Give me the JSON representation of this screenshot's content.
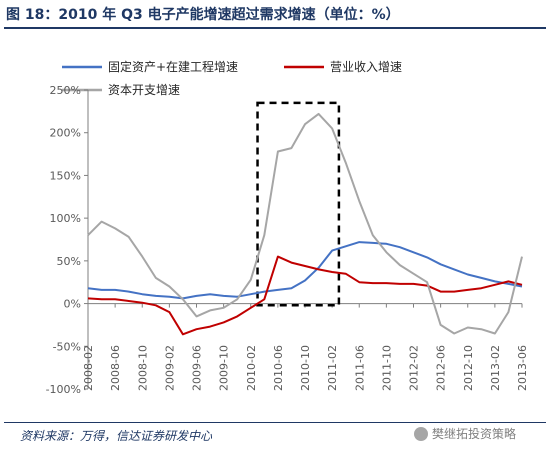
{
  "header": {
    "title": "图 18：2010 年 Q3 电子产能增速超过需求增速（单位：%）"
  },
  "footer": {
    "source": "资料来源：万得，信达证券研发中心",
    "watermark": "樊继拓投资策略"
  },
  "chart_data": {
    "type": "line",
    "title": "",
    "xlabel": "",
    "ylabel": "",
    "ylim": [
      -100,
      250
    ],
    "yticks": [
      -100,
      -50,
      0,
      50,
      100,
      150,
      200,
      250
    ],
    "ytick_labels": [
      "-100%",
      "-50%",
      "0%",
      "50%",
      "100%",
      "150%",
      "200%",
      "250%"
    ],
    "xtick_labels": [
      "2008-02",
      "2008-06",
      "2008-10",
      "2009-02",
      "2009-06",
      "2009-10",
      "2010-02",
      "2010-06",
      "2010-10",
      "2011-02",
      "2011-06",
      "2011-10",
      "2012-02",
      "2012-06",
      "2012-10",
      "2013-02",
      "2013-06"
    ],
    "x": [
      "2008-02",
      "2008-04",
      "2008-06",
      "2008-08",
      "2008-10",
      "2008-12",
      "2009-02",
      "2009-04",
      "2009-06",
      "2009-08",
      "2009-10",
      "2009-12",
      "2010-02",
      "2010-04",
      "2010-06",
      "2010-08",
      "2010-10",
      "2010-12",
      "2011-02",
      "2011-04",
      "2011-06",
      "2011-08",
      "2011-10",
      "2011-12",
      "2012-02",
      "2012-04",
      "2012-06",
      "2012-08",
      "2012-10",
      "2012-12",
      "2013-02",
      "2013-04",
      "2013-06"
    ],
    "series": [
      {
        "name": "固定资产+在建工程增速",
        "color": "#4472c4",
        "values": [
          18,
          16,
          16,
          14,
          11,
          9,
          8,
          6,
          9,
          11,
          9,
          8,
          11,
          14,
          16,
          18,
          27,
          42,
          62,
          67,
          72,
          71,
          70,
          66,
          60,
          54,
          46,
          40,
          34,
          30,
          26,
          23,
          20
        ]
      },
      {
        "name": "营业收入增速",
        "color": "#c00000",
        "values": [
          6,
          5,
          5,
          3,
          1,
          -2,
          -10,
          -36,
          -30,
          -27,
          -22,
          -15,
          -5,
          5,
          55,
          48,
          44,
          40,
          37,
          35,
          25,
          24,
          24,
          23,
          23,
          21,
          14,
          14,
          16,
          18,
          22,
          26,
          22
        ]
      },
      {
        "name": "资本开支增速",
        "color": "#a6a6a6",
        "values": [
          80,
          96,
          88,
          78,
          55,
          30,
          20,
          5,
          -15,
          -8,
          -5,
          5,
          28,
          80,
          178,
          182,
          210,
          222,
          205,
          165,
          120,
          80,
          60,
          45,
          35,
          25,
          -25,
          -35,
          -28,
          -30,
          -35,
          -10,
          55
        ]
      }
    ],
    "annotation": {
      "type": "dashed-box",
      "x_from": "2010-03",
      "x_to": "2011-03",
      "y_from": -2,
      "y_to": 235
    },
    "legend": "top",
    "grid": false
  }
}
